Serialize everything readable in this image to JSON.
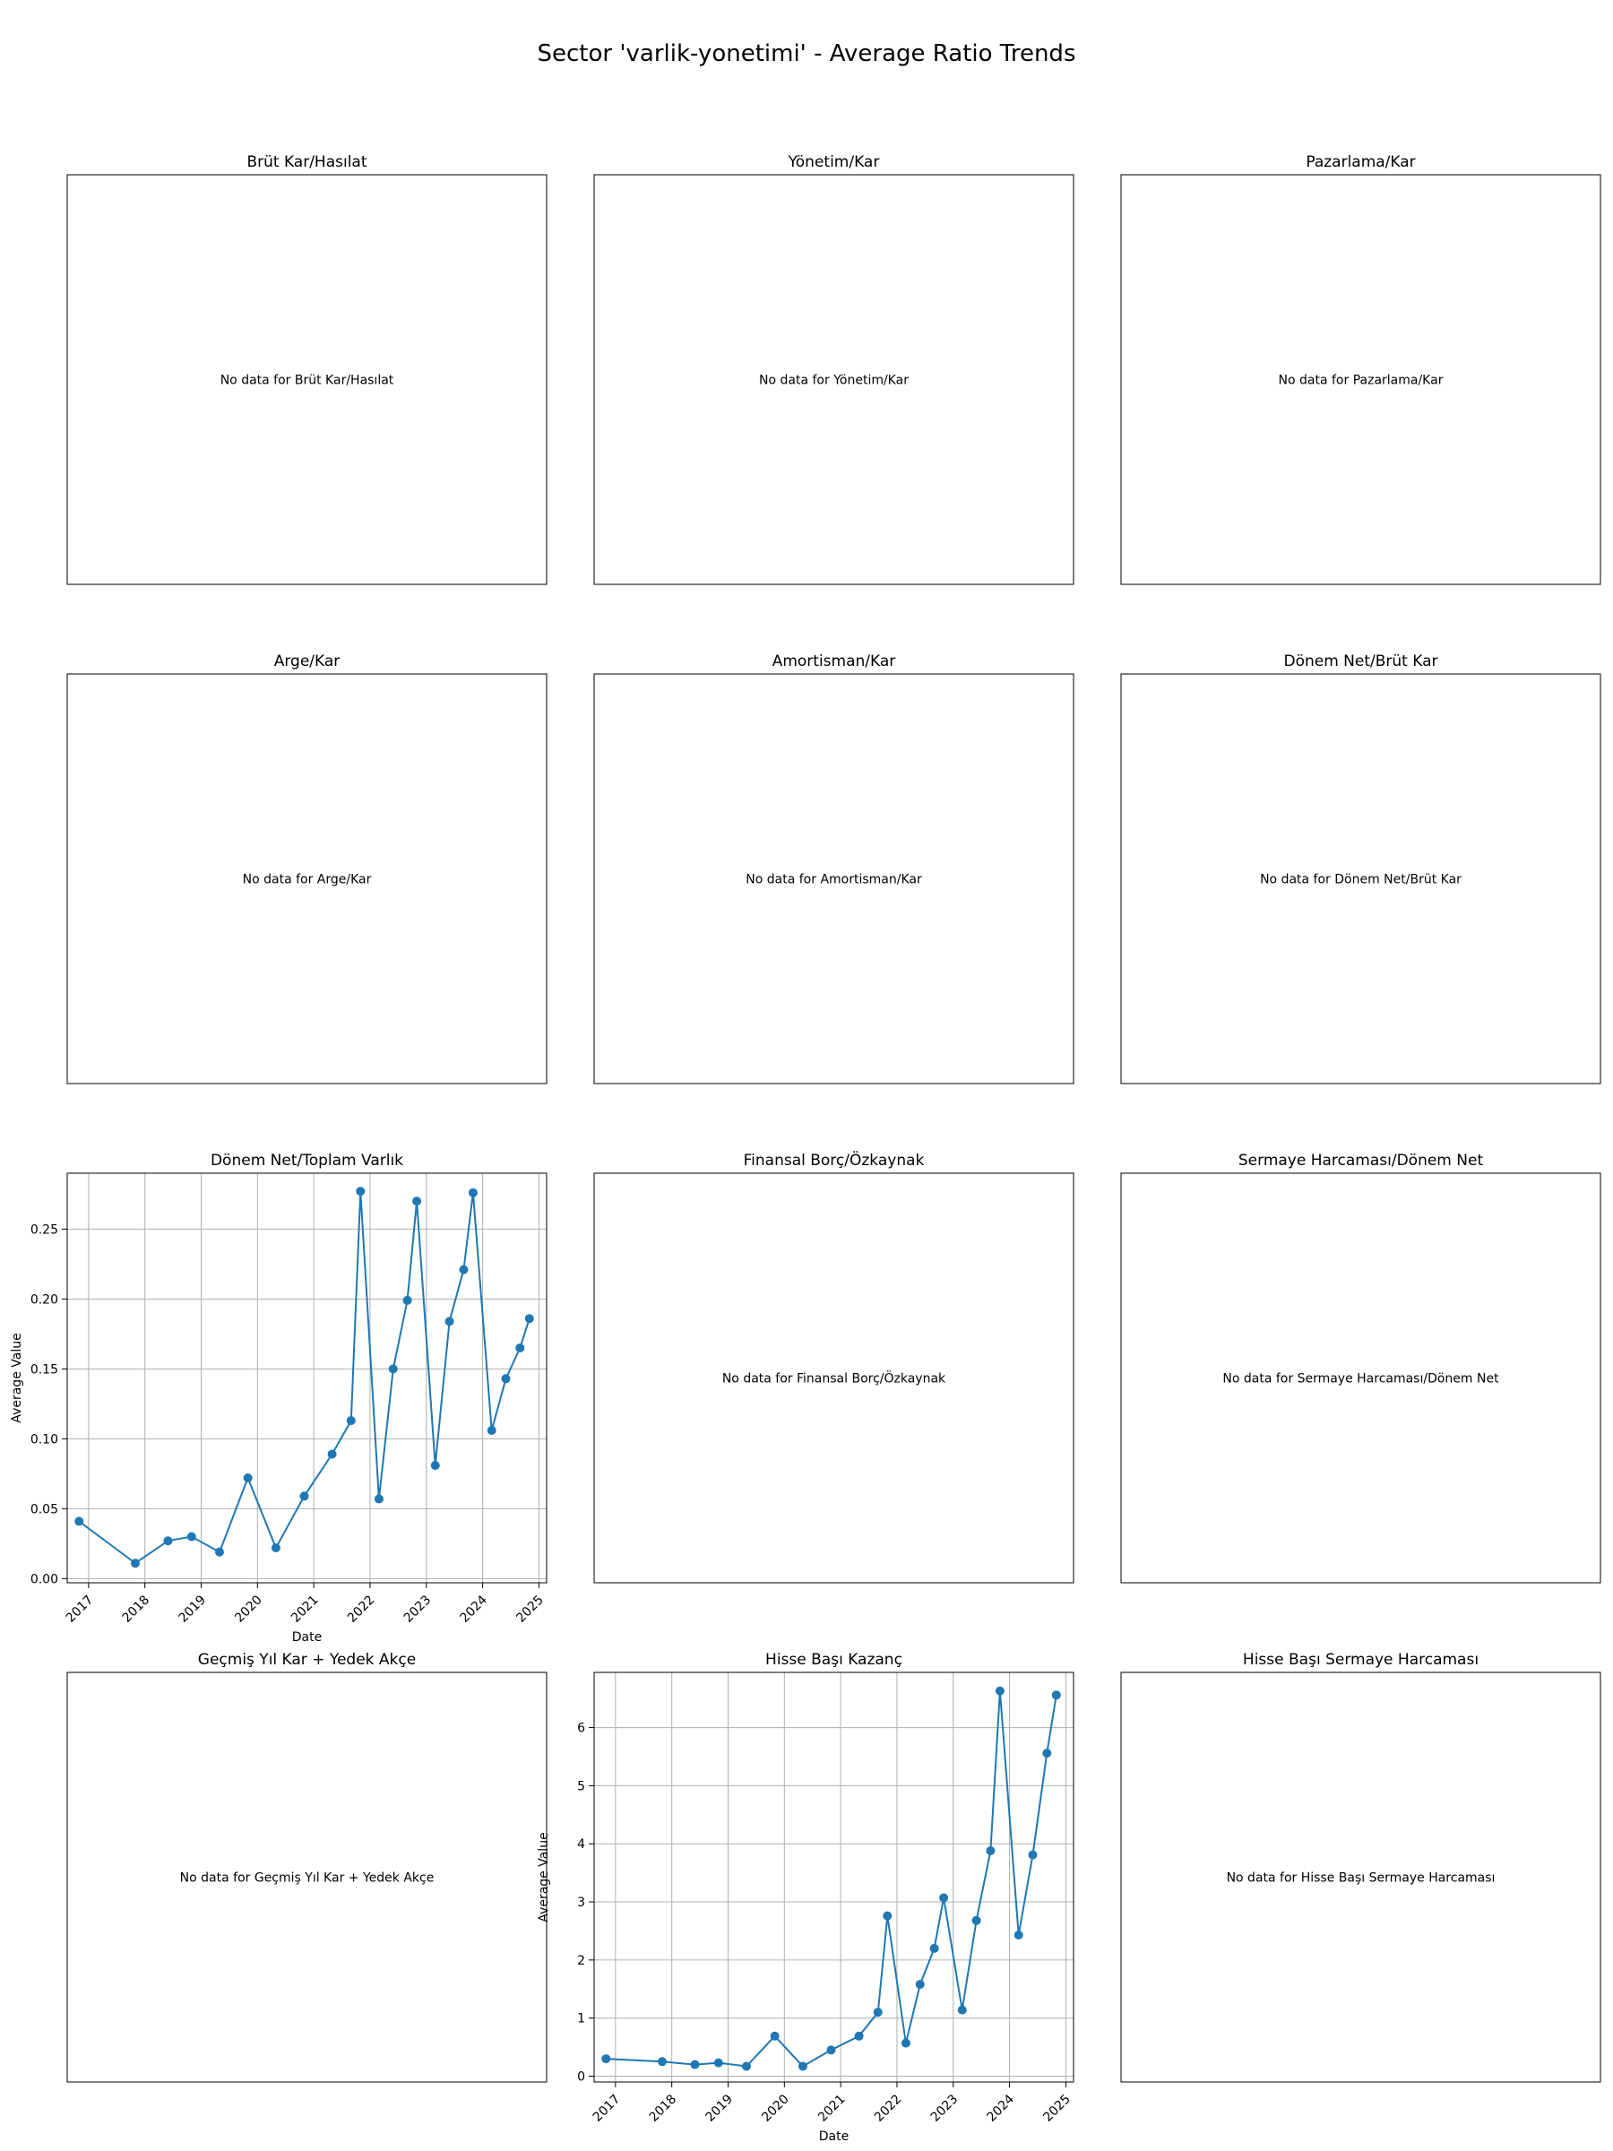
{
  "figure": {
    "title": "Sector 'varlik-yonetimi' - Average Ratio Trends"
  },
  "chart_data": [
    {
      "type": "line",
      "title": "Brüt Kar/Hasılat",
      "no_data_text": "No data for Brüt Kar/Hasılat"
    },
    {
      "type": "line",
      "title": "Yönetim/Kar",
      "no_data_text": "No data for Yönetim/Kar"
    },
    {
      "type": "line",
      "title": "Pazarlama/Kar",
      "no_data_text": "No data for Pazarlama/Kar"
    },
    {
      "type": "line",
      "title": "Arge/Kar",
      "no_data_text": "No data for Arge/Kar"
    },
    {
      "type": "line",
      "title": "Amortisman/Kar",
      "no_data_text": "No data for Amortisman/Kar"
    },
    {
      "type": "line",
      "title": "Dönem Net/Brüt Kar",
      "no_data_text": "No data for Dönem Net/Brüt Kar"
    },
    {
      "type": "line",
      "title": "Dönem Net/Toplam Varlık",
      "xlabel": "Date",
      "ylabel": "Average Value",
      "grid": true,
      "color": "#1f77b4",
      "x": [
        "2016-10-31",
        "2017-10-31",
        "2018-05-31",
        "2018-10-31",
        "2019-04-30",
        "2019-10-31",
        "2020-04-30",
        "2020-10-31",
        "2021-04-30",
        "2021-08-31",
        "2021-10-31",
        "2022-02-28",
        "2022-05-31",
        "2022-08-31",
        "2022-10-31",
        "2023-02-28",
        "2023-05-31",
        "2023-08-31",
        "2023-10-31",
        "2024-02-29",
        "2024-05-31",
        "2024-08-31",
        "2024-10-31"
      ],
      "y": [
        0.041,
        0.011,
        0.027,
        0.03,
        0.019,
        0.072,
        0.022,
        0.059,
        0.089,
        0.113,
        0.277,
        0.057,
        0.15,
        0.199,
        0.27,
        0.081,
        0.184,
        0.221,
        0.276,
        0.106,
        0.143,
        0.165,
        0.186
      ],
      "xlim": [
        "2016-08-15",
        "2025-02-20"
      ],
      "ylim": [
        -0.003,
        0.29
      ],
      "xticks": [
        "2017",
        "2018",
        "2019",
        "2020",
        "2021",
        "2022",
        "2023",
        "2024",
        "2025"
      ],
      "yticks": [
        "0.00",
        "0.05",
        "0.10",
        "0.15",
        "0.20",
        "0.25"
      ]
    },
    {
      "type": "line",
      "title": "Finansal Borç/Özkaynak",
      "no_data_text": "No data for Finansal Borç/Özkaynak"
    },
    {
      "type": "line",
      "title": "Sermaye Harcaması/Dönem Net",
      "no_data_text": "No data for Sermaye Harcaması/Dönem Net"
    },
    {
      "type": "line",
      "title": "Geçmiş Yıl Kar + Yedek Akçe",
      "no_data_text": "No data for Geçmiş Yıl Kar + Yedek Akçe"
    },
    {
      "type": "line",
      "title": "Hisse Başı Kazanç",
      "xlabel": "Date",
      "ylabel": "Average Value",
      "grid": true,
      "color": "#1f77b4",
      "x": [
        "2016-10-31",
        "2017-10-31",
        "2018-05-31",
        "2018-10-31",
        "2019-04-30",
        "2019-10-31",
        "2020-04-30",
        "2020-10-31",
        "2021-04-30",
        "2021-08-31",
        "2021-10-31",
        "2022-02-28",
        "2022-05-31",
        "2022-08-31",
        "2022-10-31",
        "2023-02-28",
        "2023-05-31",
        "2023-08-31",
        "2023-10-31",
        "2024-02-29",
        "2024-05-31",
        "2024-08-31",
        "2024-10-31"
      ],
      "y": [
        0.3,
        0.25,
        0.2,
        0.23,
        0.17,
        0.69,
        0.17,
        0.45,
        0.69,
        1.1,
        2.76,
        0.57,
        1.58,
        2.2,
        3.07,
        1.14,
        2.68,
        3.88,
        6.63,
        2.43,
        3.81,
        5.56,
        6.56
      ],
      "xlim": [
        "2016-08-15",
        "2025-02-20"
      ],
      "ylim": [
        -0.1,
        6.95
      ],
      "xticks": [
        "2017",
        "2018",
        "2019",
        "2020",
        "2021",
        "2022",
        "2023",
        "2024",
        "2025"
      ],
      "yticks": [
        "0",
        "1",
        "2",
        "3",
        "4",
        "5",
        "6"
      ]
    },
    {
      "type": "line",
      "title": "Hisse Başı Sermaye Harcaması",
      "no_data_text": "No data for Hisse Başı Sermaye Harcaması"
    }
  ]
}
